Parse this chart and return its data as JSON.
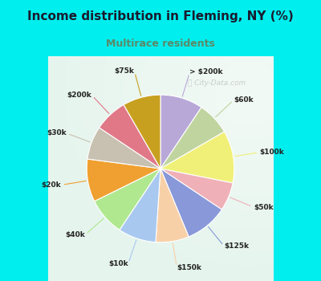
{
  "title": "Income distribution in Fleming, NY (%)",
  "subtitle": "Multirace residents",
  "title_color": "#1a1a2e",
  "subtitle_color": "#5a8a6a",
  "bg_color": "#00eeee",
  "chart_bg_top_left": "#e8f5ee",
  "chart_bg_center": "#ffffff",
  "labels": [
    "> $200k",
    "$60k",
    "$100k",
    "$50k",
    "$125k",
    "$150k",
    "$10k",
    "$40k",
    "$20k",
    "$30k",
    "$200k",
    "$75k"
  ],
  "values": [
    9,
    7,
    11,
    6,
    9,
    7,
    8,
    8,
    9,
    7,
    7,
    8
  ],
  "colors": [
    "#b8a8d8",
    "#c0d4a0",
    "#f0f078",
    "#f0b0b8",
    "#8898d8",
    "#f8d0a8",
    "#a8c8f0",
    "#b0e890",
    "#f0a030",
    "#c8c0b0",
    "#e07888",
    "#c8a020"
  ],
  "watermark": "City-Data.com",
  "startangle": 90
}
